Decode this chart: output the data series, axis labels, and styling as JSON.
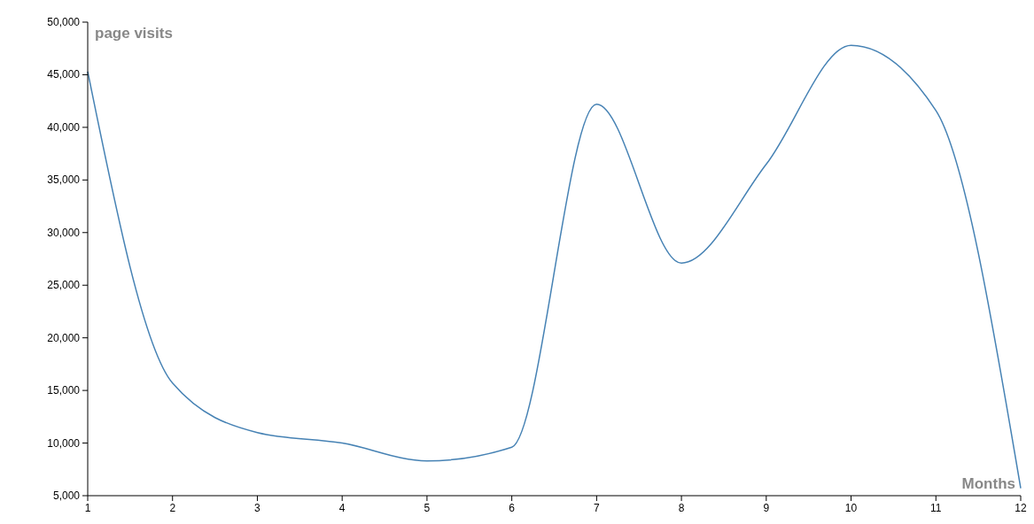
{
  "chart_data": {
    "type": "line",
    "ylabel": "page visits",
    "xlabel": "Months",
    "x": [
      1,
      2,
      3,
      4,
      5,
      6,
      7,
      8,
      9,
      10,
      11,
      12
    ],
    "series": [
      {
        "color": "#4682b4",
        "values": [
          45300,
          15700,
          11000,
          10000,
          8300,
          9600,
          42200,
          27100,
          36500,
          47800,
          41600,
          5700
        ]
      }
    ],
    "xlim": [
      1,
      12
    ],
    "xticks": [
      1,
      2,
      3,
      4,
      5,
      6,
      7,
      8,
      9,
      10,
      11,
      12
    ],
    "ylim": [
      5000,
      50000
    ],
    "yticks": [
      {
        "value": 5000,
        "label": "5,000"
      },
      {
        "value": 10000,
        "label": "10,000"
      },
      {
        "value": 15000,
        "label": "15,000"
      },
      {
        "value": 20000,
        "label": "20,000"
      },
      {
        "value": 25000,
        "label": "25,000"
      },
      {
        "value": 30000,
        "label": "30,000"
      },
      {
        "value": 35000,
        "label": "35,000"
      },
      {
        "value": 40000,
        "label": "40,000"
      },
      {
        "value": 45000,
        "label": "45,000"
      },
      {
        "value": 50000,
        "label": "50,000"
      }
    ],
    "grid": false
  }
}
